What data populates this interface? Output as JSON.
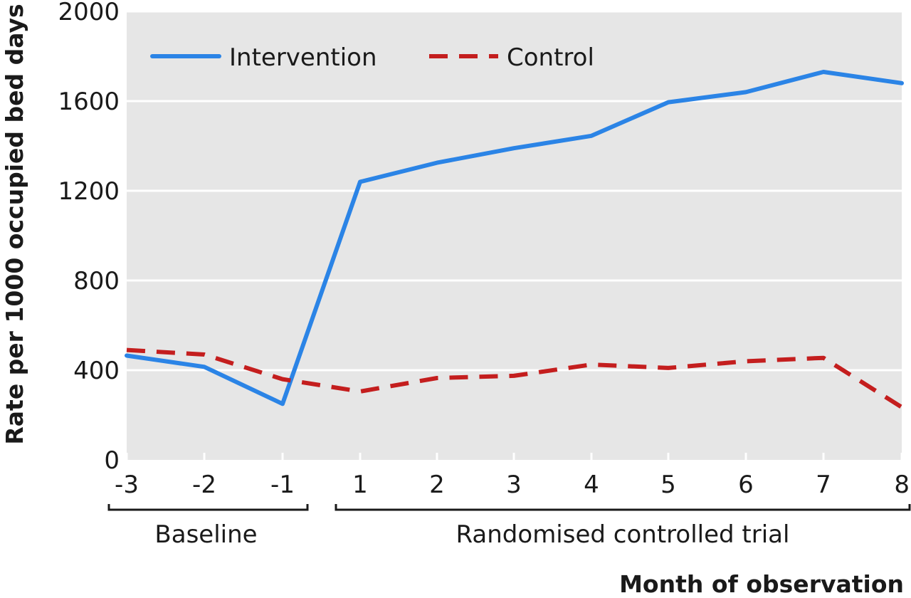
{
  "chart_data": {
    "type": "line",
    "xlabel": "Month of observation",
    "ylabel": "Rate per 1000 occupied bed days",
    "x": [
      -3,
      -2,
      -1,
      1,
      2,
      3,
      4,
      5,
      6,
      7,
      8
    ],
    "x_tick_labels": [
      "-3",
      "-2",
      "-1",
      "1",
      "2",
      "3",
      "4",
      "5",
      "6",
      "7",
      "8"
    ],
    "ylim": [
      0,
      2000
    ],
    "y_ticks": [
      0,
      400,
      800,
      1200,
      1600,
      2000
    ],
    "y_tick_labels": [
      "0",
      "400",
      "800",
      "1200",
      "1600",
      "2000"
    ],
    "grid": true,
    "legend_position": "top-left",
    "series": [
      {
        "name": "Intervention",
        "color": "#2b84e6",
        "style": "solid",
        "values": [
          465,
          415,
          250,
          1240,
          1325,
          1390,
          1445,
          1595,
          1640,
          1730,
          1680
        ]
      },
      {
        "name": "Control",
        "color": "#c41e1e",
        "style": "dashed",
        "values": [
          490,
          470,
          360,
          305,
          365,
          375,
          425,
          410,
          440,
          455,
          235
        ]
      }
    ],
    "groups": [
      {
        "label": "Baseline",
        "from": -3,
        "to": -1
      },
      {
        "label": "Randomised controlled trial",
        "from": 1,
        "to": 8
      }
    ]
  }
}
